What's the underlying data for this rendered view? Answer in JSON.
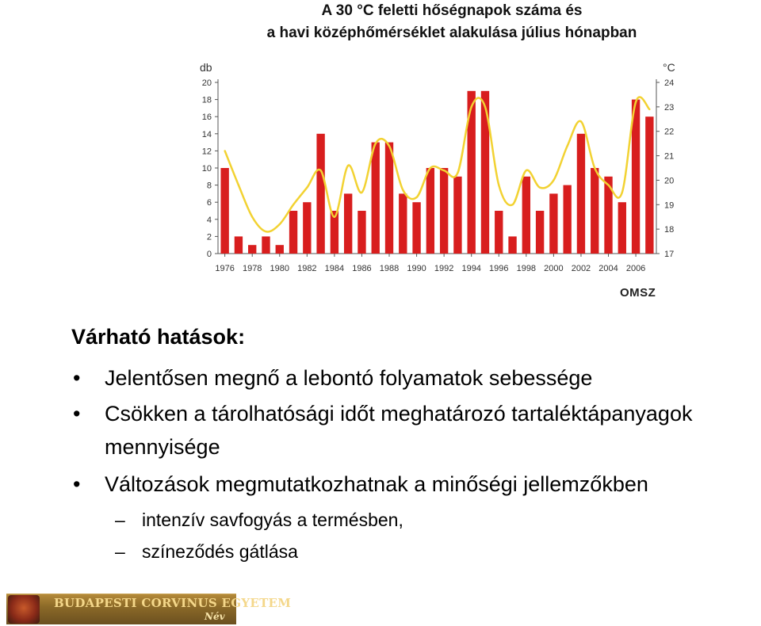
{
  "chart_data": {
    "type": "bar",
    "title": "A 30 °C feletti hőségnapok száma és a havi középhőmérséklet alakulása július hónapban",
    "title_lines": [
      "A 30 °C feletti hőségnapok száma és",
      "a havi középhőmérséklet alakulása július hónapban"
    ],
    "left_unit": "db",
    "right_unit": "°C",
    "ylim": [
      0,
      20
    ],
    "y2lim": [
      17,
      24
    ],
    "y_ticks": [
      0,
      2,
      4,
      6,
      8,
      10,
      12,
      14,
      16,
      18,
      20
    ],
    "y2_ticks": [
      17,
      18,
      19,
      20,
      21,
      22,
      23,
      24
    ],
    "x_tick_labels": [
      "1976",
      "1978",
      "1980",
      "1982",
      "1984",
      "1986",
      "1988",
      "1990",
      "1992",
      "1994",
      "1996",
      "1998",
      "2000",
      "2002",
      "2004",
      "2006"
    ],
    "categories": [
      1976,
      1977,
      1978,
      1979,
      1980,
      1981,
      1982,
      1983,
      1984,
      1985,
      1986,
      1987,
      1988,
      1989,
      1990,
      1991,
      1992,
      1993,
      1994,
      1995,
      1996,
      1997,
      1998,
      1999,
      2000,
      2001,
      2002,
      2003,
      2004,
      2005,
      2006,
      2007
    ],
    "series": [
      {
        "type": "bar",
        "color": "#d81e1e",
        "axis": "left",
        "values": [
          10,
          2,
          1,
          2,
          1,
          5,
          6,
          14,
          5,
          7,
          5,
          13,
          13,
          7,
          6,
          10,
          10,
          9,
          19,
          19,
          5,
          2,
          9,
          5,
          7,
          8,
          14,
          10,
          9,
          6,
          18,
          16
        ]
      },
      {
        "type": "line",
        "color": "#f2d232",
        "axis": "right",
        "values": [
          21.2,
          19.8,
          18.5,
          17.9,
          18.2,
          19.0,
          19.7,
          20.4,
          18.5,
          20.6,
          19.5,
          21.5,
          21.4,
          19.6,
          19.3,
          20.5,
          20.4,
          20.3,
          23.0,
          23.0,
          19.8,
          19.0,
          20.4,
          19.7,
          20.0,
          21.4,
          22.4,
          20.5,
          19.8,
          19.5,
          23.2,
          22.9
        ]
      }
    ],
    "grid": false,
    "source": "OMSZ"
  },
  "content": {
    "heading": "Várható hatások:",
    "bullet_symbol": "•",
    "dash_symbol": "–",
    "bullets": [
      "Jelentősen megnő a lebontó folyamatok sebessége",
      "Csökken a tárolhatósági időt meghatározó tartaléktápanyagok",
      "Változások megmutatkozhatnak a minőségi jellemzőkben"
    ],
    "bullet2_continuation": "mennyisége",
    "sub_items": [
      "intenzív savfogyás a termésben,",
      "színeződés gátlása"
    ]
  },
  "footer": {
    "university": "BUDAPESTI CORVINUS EGYETEM",
    "name_label": "Név"
  }
}
